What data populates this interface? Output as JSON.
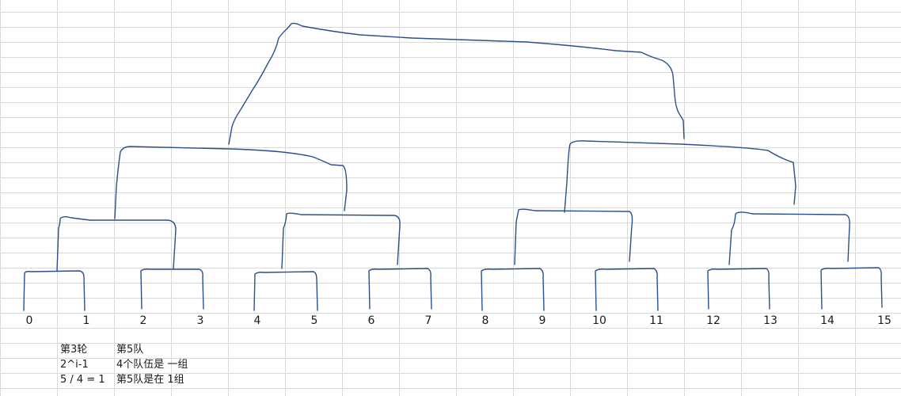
{
  "colors": {
    "ink": "#2b4f8c",
    "grid": "#d9d9d9",
    "text": "#1a1a1a"
  },
  "team_numbers": [
    "0",
    "1",
    "2",
    "3",
    "4",
    "5",
    "6",
    "7",
    "8",
    "9",
    "10",
    "11",
    "12",
    "13",
    "14",
    "15"
  ],
  "notes": {
    "round_label": "第3轮",
    "formula": "2^i-1",
    "division": "5 / 4 = 1",
    "team_label": "第5队",
    "group_size": "4个队伍是 一组",
    "result": "第5队是在 1组"
  }
}
